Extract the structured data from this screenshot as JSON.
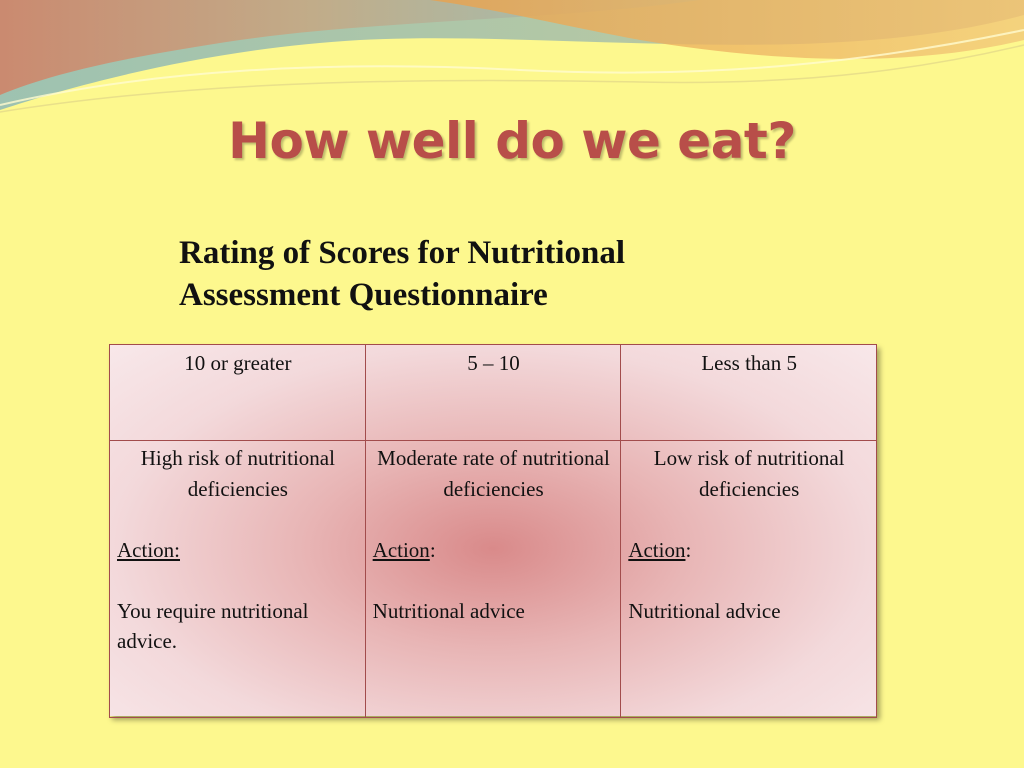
{
  "slide": {
    "title": "How well do we eat?",
    "subtitle_line1": "Rating of Scores for Nutritional",
    "subtitle_line2": "Assessment Questionnaire"
  },
  "table": {
    "headers": [
      "10 or greater",
      "5 – 10",
      "Less than 5"
    ],
    "rows": [
      {
        "risk": "High risk of nutritional deficiencies",
        "action_label": "Action:",
        "action_suffix": "",
        "advice": "You require nutritional advice."
      },
      {
        "risk": "Moderate rate of nutritional deficiencies",
        "action_label": "Action",
        "action_suffix": ":",
        "advice": "Nutritional advice"
      },
      {
        "risk": "Low risk of nutritional deficiencies",
        "action_label": "Action",
        "action_suffix": ":",
        "advice": "Nutritional advice"
      }
    ]
  },
  "colors": {
    "background": "#fdf88e",
    "title": "#b84e49",
    "table_border": "#a24c4c"
  }
}
